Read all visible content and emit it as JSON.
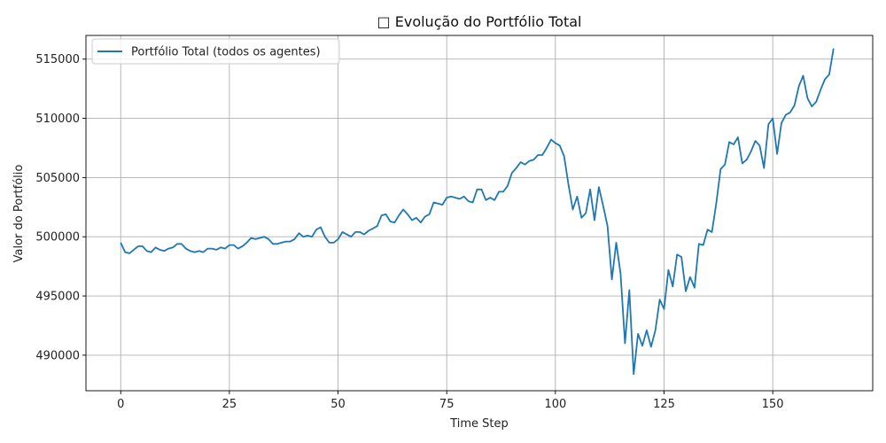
{
  "chart_data": {
    "type": "line",
    "title": "□ Evolução do Portfólio Total",
    "xlabel": "Time Step",
    "ylabel": "Valor do Portfólio",
    "xlim": [
      -8,
      173
    ],
    "ylim": [
      487000,
      517000
    ],
    "xticks": [
      0,
      25,
      50,
      75,
      100,
      125,
      150
    ],
    "yticks": [
      490000,
      495000,
      500000,
      505000,
      510000,
      515000
    ],
    "grid": true,
    "legend_position": "top-left",
    "colors": {
      "series": "#1f77b4",
      "grid": "#b0b0b0",
      "axis": "#000000"
    },
    "series": [
      {
        "name": "Portfólio Total (todos os agentes)",
        "x": [
          0,
          1,
          2,
          3,
          4,
          5,
          6,
          7,
          8,
          9,
          10,
          11,
          12,
          13,
          14,
          15,
          16,
          17,
          18,
          19,
          20,
          21,
          22,
          23,
          24,
          25,
          26,
          27,
          28,
          29,
          30,
          31,
          32,
          33,
          34,
          35,
          36,
          37,
          38,
          39,
          40,
          41,
          42,
          43,
          44,
          45,
          46,
          47,
          48,
          49,
          50,
          51,
          52,
          53,
          54,
          55,
          56,
          57,
          58,
          59,
          60,
          61,
          62,
          63,
          64,
          65,
          66,
          67,
          68,
          69,
          70,
          71,
          72,
          73,
          74,
          75,
          76,
          77,
          78,
          79,
          80,
          81,
          82,
          83,
          84,
          85,
          86,
          87,
          88,
          89,
          90,
          91,
          92,
          93,
          94,
          95,
          96,
          97,
          98,
          99,
          100,
          101,
          102,
          103,
          104,
          105,
          106,
          107,
          108,
          109,
          110,
          111,
          112,
          113,
          114,
          115,
          116,
          117,
          118,
          119,
          120,
          121,
          122,
          123,
          124,
          125,
          126,
          127,
          128,
          129,
          130,
          131,
          132,
          133,
          134,
          135,
          136,
          137,
          138,
          139,
          140,
          141,
          142,
          143,
          144,
          145,
          146,
          147,
          148,
          149,
          150,
          151,
          152,
          153,
          154,
          155,
          156,
          157,
          158,
          159,
          160,
          161,
          162,
          163,
          164
        ],
        "values": [
          499500,
          498700,
          498600,
          498900,
          499200,
          499200,
          498800,
          498700,
          499100,
          498900,
          498800,
          499000,
          499100,
          499400,
          499400,
          499000,
          498800,
          498700,
          498800,
          498700,
          499000,
          499000,
          498900,
          499100,
          499000,
          499300,
          499300,
          499000,
          499200,
          499500,
          499900,
          499800,
          499900,
          500000,
          499800,
          499400,
          499400,
          499500,
          499600,
          499600,
          499800,
          500300,
          500000,
          500100,
          500000,
          500600,
          500800,
          500000,
          499500,
          499500,
          499800,
          500400,
          500200,
          500000,
          500400,
          500400,
          500200,
          500500,
          500700,
          500900,
          501800,
          501900,
          501300,
          501200,
          501800,
          502300,
          501900,
          501400,
          501600,
          501200,
          501700,
          501900,
          502900,
          502800,
          502700,
          503300,
          503400,
          503300,
          503200,
          503400,
          503000,
          502900,
          504000,
          504000,
          503100,
          503300,
          503100,
          503800,
          503800,
          504300,
          505400,
          505800,
          506300,
          506100,
          506400,
          506500,
          506900,
          506900,
          507500,
          508200,
          507900,
          507700,
          506800,
          504400,
          502300,
          503400,
          501600,
          502000,
          504000,
          501400,
          504200,
          502600,
          500900,
          496400,
          499500,
          496900,
          491000,
          495500,
          488400,
          491800,
          490800,
          492100,
          490700,
          492100,
          494700,
          493900,
          497200,
          495800,
          498500,
          498300,
          495400,
          496600,
          495700,
          499400,
          499300,
          500600,
          500400,
          502800,
          505700,
          506100,
          508000,
          507800,
          508400,
          506200,
          506500,
          507200,
          508100,
          507700,
          505800,
          509500,
          510000,
          507000,
          509600,
          510300,
          510500,
          511100,
          512700,
          513600,
          511700,
          511000,
          511400,
          512400,
          513300,
          513700,
          515900
        ]
      }
    ]
  }
}
